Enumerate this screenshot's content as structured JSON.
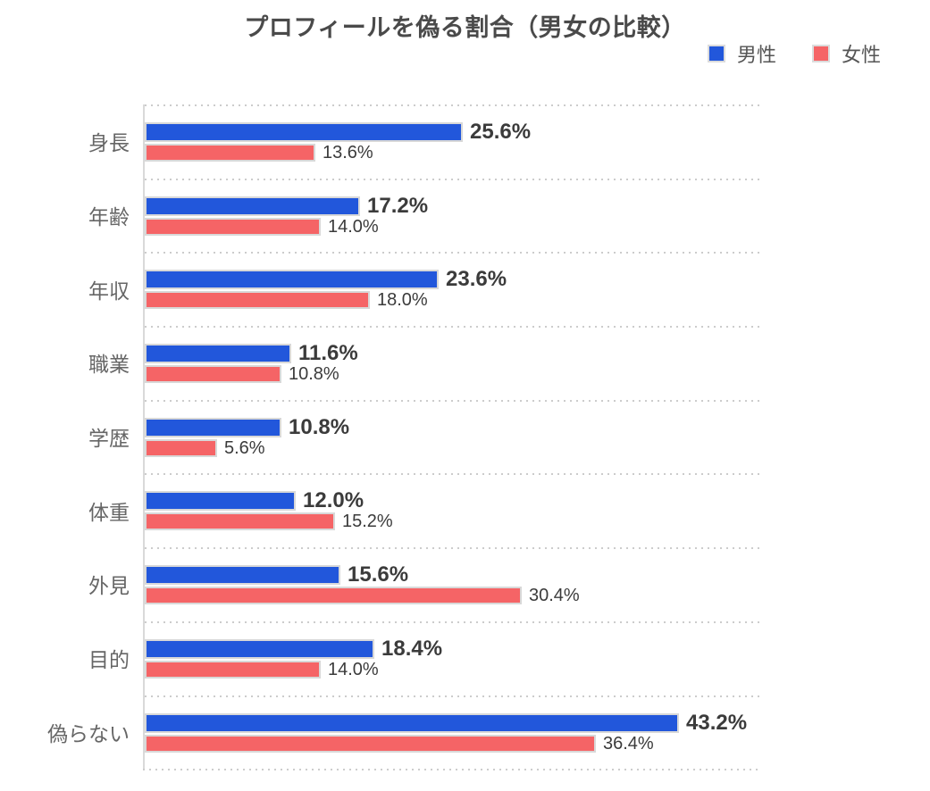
{
  "title": "プロフィールを偽る割合（男女の比較）",
  "legend": {
    "items": [
      {
        "label": "男性",
        "color": "#2257db"
      },
      {
        "label": "女性",
        "color": "#f56466"
      }
    ]
  },
  "colors": {
    "male_bar": "#2257db",
    "female_bar": "#f56466",
    "bar_border": "#d8d8d8",
    "axis_line": "#d9d9d9",
    "grid_dots": "#cccccc",
    "title_text": "#4a4a4a",
    "category_text": "#666666",
    "value_text": "#3b3b3b",
    "legend_text": "#555555",
    "background": "#ffffff"
  },
  "chart_data": {
    "type": "bar",
    "orientation": "horizontal",
    "title": "プロフィールを偽る割合（男女の比較）",
    "categories": [
      "身長",
      "年齢",
      "年収",
      "職業",
      "学歴",
      "体重",
      "外見",
      "目的",
      "偽らない"
    ],
    "series": [
      {
        "name": "男性",
        "color": "#2257db",
        "values": [
          25.6,
          17.2,
          23.6,
          11.6,
          10.8,
          12.0,
          15.6,
          18.4,
          43.2
        ],
        "labels": [
          "25.6%",
          "17.2%",
          "23.6%",
          "11.6%",
          "10.8%",
          "12.0%",
          "15.6%",
          "18.4%",
          "43.2%"
        ]
      },
      {
        "name": "女性",
        "color": "#f56466",
        "values": [
          13.6,
          14.0,
          18.0,
          10.8,
          5.6,
          15.2,
          30.4,
          14.0,
          36.4
        ],
        "labels": [
          "13.6%",
          "14.0%",
          "18.0%",
          "10.8%",
          "5.6%",
          "15.2%",
          "30.4%",
          "14.0%",
          "36.4%"
        ]
      }
    ],
    "xlabel": "",
    "ylabel": "",
    "xlim": [
      0,
      50
    ],
    "grid": "dotted-category-separator-lines",
    "legend_position": "top-right"
  }
}
